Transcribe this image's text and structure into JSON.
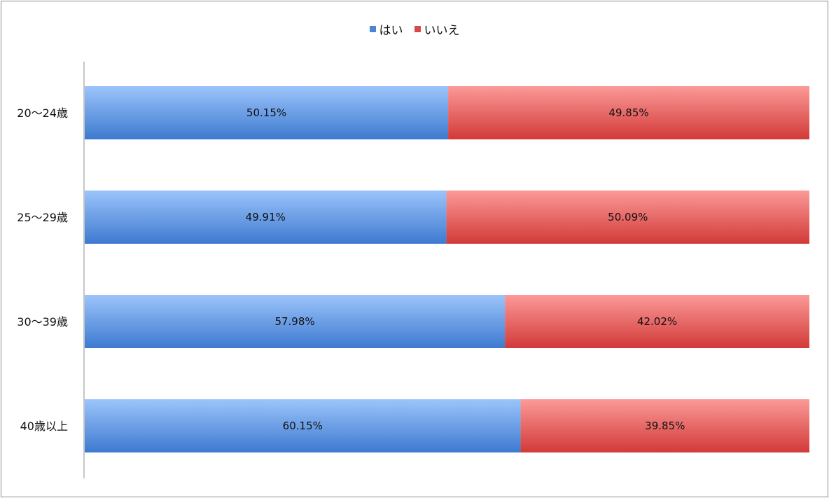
{
  "chart_data": {
    "type": "bar",
    "orientation": "horizontal",
    "stacked": true,
    "percent": true,
    "categories": [
      "20〜24歳",
      "25〜29歳",
      "30〜39歳",
      "40歳以上"
    ],
    "series": [
      {
        "name": "はい",
        "values": [
          50.15,
          49.91,
          57.98,
          60.15
        ],
        "labels": [
          "50.15%",
          "49.91%",
          "57.98%",
          "60.15%"
        ],
        "color": "#4a86d8"
      },
      {
        "name": "いいえ",
        "values": [
          49.85,
          50.09,
          42.02,
          39.85
        ],
        "labels": [
          "49.85%",
          "50.09%",
          "42.02%",
          "39.85%"
        ],
        "color": "#d84a4a"
      }
    ],
    "xlim": [
      0,
      100
    ],
    "legend": "top",
    "grid": false
  }
}
